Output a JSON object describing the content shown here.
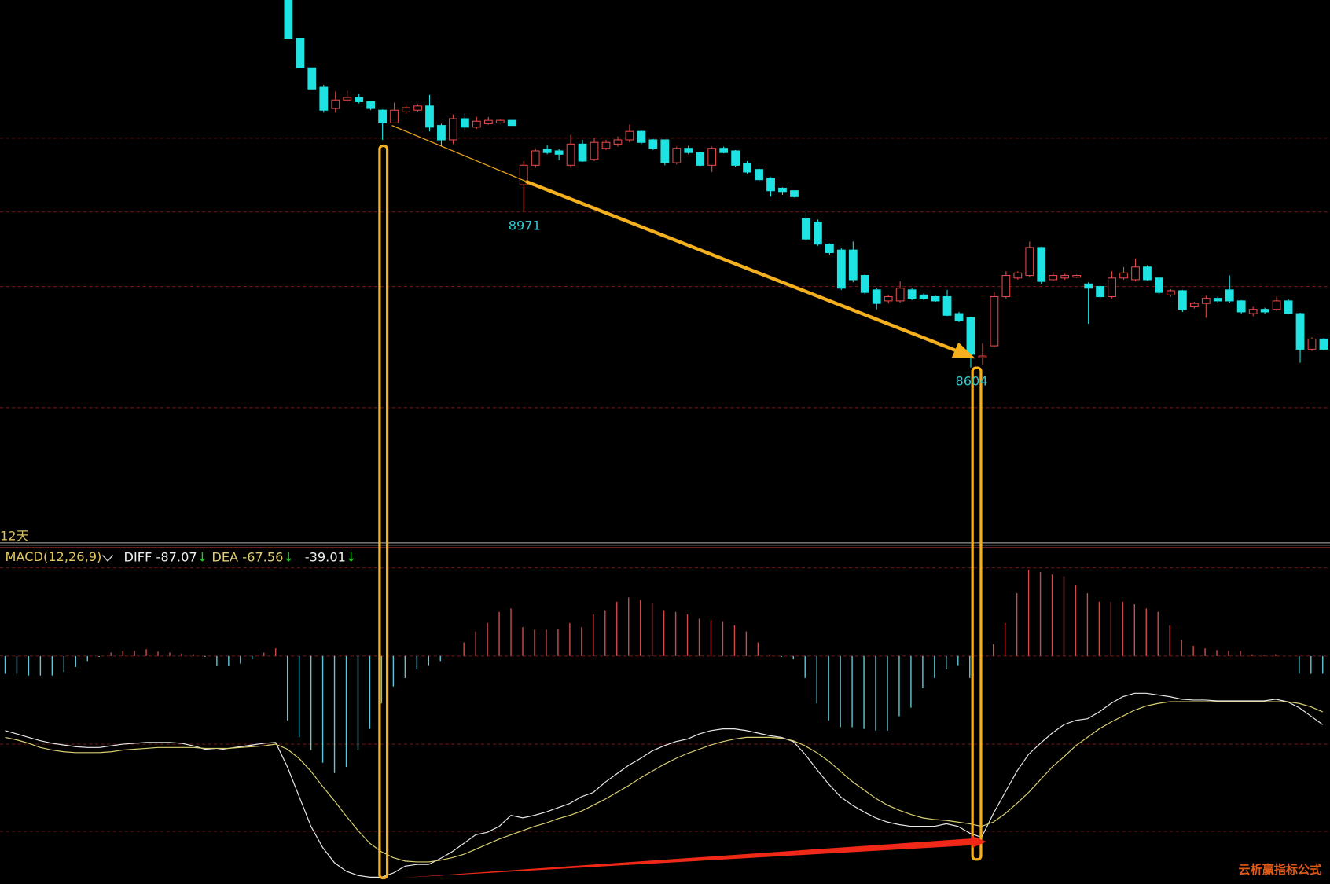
{
  "chart_data": [
    {
      "type": "candlestick",
      "up_color": "#e04848",
      "down_color": "#1fe3e3",
      "ylim": [
        8191,
        9471
      ],
      "yticks": [
        9145,
        8971,
        8795,
        8509
      ],
      "grid": true,
      "candles": {
        "open": [
          9471,
          9381,
          9311,
          9265,
          9215,
          9235,
          9241,
          9231,
          9211,
          9181,
          9207,
          9211,
          9221,
          9175,
          9141,
          9191,
          9171,
          9179,
          9181,
          9187,
          9035,
          9081,
          9119,
          9115,
          9081,
          9131,
          9095,
          9121,
          9131,
          9141,
          9161,
          9141,
          9141,
          9087,
          9121,
          9111,
          9081,
          9121,
          9115,
          9085,
          9071,
          9051,
          9027,
          9021,
          8955,
          8947,
          8895,
          8881,
          8881,
          8821,
          8787,
          8761,
          8761,
          8787,
          8775,
          8771,
          8771,
          8731,
          8721,
          8627,
          8655,
          8771,
          8815,
          8821,
          8887,
          8811,
          8815,
          8817,
          8801,
          8795,
          8771,
          8815,
          8811,
          8841,
          8815,
          8775,
          8785,
          8747,
          8755,
          8767,
          8787,
          8761,
          8731,
          8741,
          8741,
          8761,
          8731,
          8647,
          8671
        ],
        "high": [
          9471,
          9381,
          9311,
          9271,
          9255,
          9257,
          9249,
          9231,
          9213,
          9229,
          9221,
          9225,
          9247,
          9179,
          9201,
          9203,
          9195,
          9195,
          9189,
          9187,
          9091,
          9121,
          9129,
          9119,
          9153,
          9141,
          9145,
          9141,
          9149,
          9177,
          9163,
          9143,
          9141,
          9125,
          9127,
          9113,
          9125,
          9125,
          9117,
          9091,
          9073,
          9053,
          9029,
          9021,
          8971,
          8953,
          8897,
          8885,
          8901,
          8823,
          8791,
          8775,
          8807,
          8791,
          8779,
          8773,
          8787,
          8735,
          8723,
          8661,
          8781,
          8831,
          8831,
          8901,
          8889,
          8829,
          8825,
          8823,
          8805,
          8797,
          8831,
          8841,
          8861,
          8845,
          8817,
          8789,
          8787,
          8759,
          8773,
          8771,
          8821,
          8763,
          8747,
          8745,
          8771,
          8765,
          8733,
          8675,
          8673
        ],
        "low": [
          9381,
          9311,
          9261,
          9205,
          9205,
          9231,
          9227,
          9211,
          9141,
          9181,
          9203,
          9207,
          9161,
          9127,
          9131,
          9165,
          9167,
          9177,
          9179,
          9175,
          8971,
          9075,
          9107,
          9093,
          9075,
          9089,
          9091,
          9117,
          9125,
          9135,
          9131,
          9117,
          9081,
          9083,
          9107,
          9079,
          9065,
          9109,
          9077,
          9061,
          9041,
          9007,
          9011,
          9005,
          8901,
          8891,
          8869,
          8787,
          8805,
          8777,
          8741,
          8755,
          8757,
          8763,
          8763,
          8759,
          8725,
          8711,
          8604,
          8611,
          8651,
          8767,
          8811,
          8817,
          8801,
          8807,
          8811,
          8815,
          8707,
          8767,
          8767,
          8811,
          8807,
          8809,
          8777,
          8771,
          8735,
          8743,
          8721,
          8757,
          8757,
          8731,
          8725,
          8731,
          8737,
          8729,
          8615,
          8643,
          8645
        ],
        "close": [
          9381,
          9311,
          9261,
          9211,
          9235,
          9241,
          9231,
          9215,
          9181,
          9211,
          9217,
          9221,
          9171,
          9141,
          9191,
          9171,
          9185,
          9187,
          9187,
          9175,
          9081,
          9115,
          9111,
          9107,
          9131,
          9091,
          9135,
          9135,
          9141,
          9161,
          9135,
          9121,
          9087,
          9121,
          9111,
          9081,
          9121,
          9111,
          9081,
          9065,
          9047,
          9021,
          9019,
          9007,
          8907,
          8895,
          8875,
          8791,
          8811,
          8781,
          8755,
          8771,
          8791,
          8767,
          8767,
          8761,
          8727,
          8715,
          8635,
          8631,
          8771,
          8821,
          8827,
          8887,
          8807,
          8821,
          8821,
          8821,
          8791,
          8771,
          8815,
          8827,
          8841,
          8811,
          8781,
          8785,
          8741,
          8755,
          8767,
          8761,
          8761,
          8735,
          8741,
          8735,
          8761,
          8731,
          8647,
          8671,
          8647
        ]
      },
      "low_labels": [
        8971,
        8604
      ],
      "period_label": "12天"
    },
    {
      "type": "macd",
      "title": "MACD(12,26,9)",
      "ylim": [
        -538,
        256
      ],
      "yticks": [
        208,
        0,
        -208,
        -414
      ],
      "grid": true,
      "readout": [
        {
          "label": "DIFF",
          "value": -87.07,
          "trend": "↓"
        },
        {
          "label": "DEA",
          "value": -67.56,
          "trend": "↓"
        },
        {
          "value": -39.01,
          "trend": "↓"
        }
      ],
      "series": [
        {
          "name": "MACD",
          "type": "bar",
          "up_color": "#d04a4a",
          "down_color": "#5fc6d6",
          "values": [
            -42,
            -42,
            -46,
            -46,
            -46,
            -38,
            -26,
            -12,
            -2,
            8,
            12,
            12,
            16,
            10,
            8,
            6,
            4,
            -2,
            -24,
            -24,
            -18,
            -8,
            8,
            18,
            -152,
            -192,
            -222,
            -252,
            -276,
            -262,
            -222,
            -172,
            -112,
            -72,
            -52,
            -32,
            -22,
            -12,
            0,
            32,
            58,
            78,
            104,
            112,
            68,
            62,
            62,
            64,
            78,
            68,
            98,
            108,
            128,
            138,
            132,
            124,
            108,
            104,
            98,
            88,
            84,
            82,
            72,
            58,
            32,
            4,
            -2,
            -8,
            -52,
            -112,
            -152,
            -168,
            -168,
            -172,
            -176,
            -176,
            -142,
            -122,
            -76,
            -52,
            -32,
            -22,
            -52,
            -62,
            28,
            78,
            148,
            204,
            198,
            192,
            188,
            168,
            148,
            128,
            128,
            128,
            122,
            112,
            104,
            72,
            38,
            24,
            18,
            14,
            12,
            12,
            4,
            2,
            4,
            0,
            -42,
            -42,
            -42
          ]
        },
        {
          "name": "DIFF",
          "type": "line",
          "color": "#e8e8e8",
          "values": [
            -176,
            -184,
            -192,
            -200,
            -206,
            -210,
            -214,
            -216,
            -216,
            -212,
            -208,
            -206,
            -204,
            -204,
            -204,
            -206,
            -212,
            -220,
            -222,
            -218,
            -214,
            -210,
            -206,
            -204,
            -262,
            -332,
            -402,
            -452,
            -488,
            -508,
            -518,
            -522,
            -522,
            -512,
            -496,
            -492,
            -492,
            -478,
            -462,
            -442,
            -422,
            -416,
            -402,
            -376,
            -382,
            -376,
            -368,
            -358,
            -348,
            -332,
            -322,
            -298,
            -278,
            -258,
            -242,
            -224,
            -212,
            -202,
            -196,
            -184,
            -176,
            -172,
            -172,
            -176,
            -182,
            -188,
            -192,
            -202,
            -232,
            -268,
            -302,
            -332,
            -352,
            -368,
            -382,
            -392,
            -398,
            -402,
            -402,
            -402,
            -396,
            -402,
            -418,
            -428,
            -372,
            -322,
            -272,
            -232,
            -206,
            -182,
            -162,
            -152,
            -148,
            -132,
            -112,
            -96,
            -88,
            -88,
            -92,
            -96,
            -102,
            -104,
            -104,
            -106,
            -106,
            -106,
            -106,
            -106,
            -102,
            -108,
            -122,
            -142,
            -162
          ]
        },
        {
          "name": "DEA",
          "type": "line",
          "color": "#d8d070",
          "values": [
            -192,
            -198,
            -206,
            -216,
            -222,
            -226,
            -228,
            -228,
            -228,
            -226,
            -222,
            -220,
            -218,
            -216,
            -216,
            -216,
            -216,
            -218,
            -218,
            -218,
            -216,
            -214,
            -212,
            -208,
            -220,
            -242,
            -272,
            -308,
            -342,
            -378,
            -412,
            -442,
            -462,
            -476,
            -484,
            -486,
            -486,
            -482,
            -476,
            -468,
            -456,
            -444,
            -432,
            -422,
            -412,
            -402,
            -394,
            -384,
            -376,
            -366,
            -352,
            -338,
            -322,
            -306,
            -288,
            -272,
            -256,
            -242,
            -230,
            -220,
            -210,
            -202,
            -196,
            -192,
            -192,
            -192,
            -194,
            -200,
            -212,
            -228,
            -248,
            -272,
            -296,
            -316,
            -336,
            -352,
            -364,
            -374,
            -382,
            -386,
            -388,
            -392,
            -396,
            -402,
            -392,
            -372,
            -348,
            -322,
            -292,
            -262,
            -238,
            -212,
            -192,
            -172,
            -156,
            -142,
            -128,
            -118,
            -112,
            -108,
            -108,
            -108,
            -108,
            -108,
            -108,
            -108,
            -108,
            -108,
            -108,
            -108,
            -112,
            -120,
            -132
          ]
        }
      ]
    },
    {
      "type": "watermark",
      "text": "云析赢指标公式"
    }
  ]
}
